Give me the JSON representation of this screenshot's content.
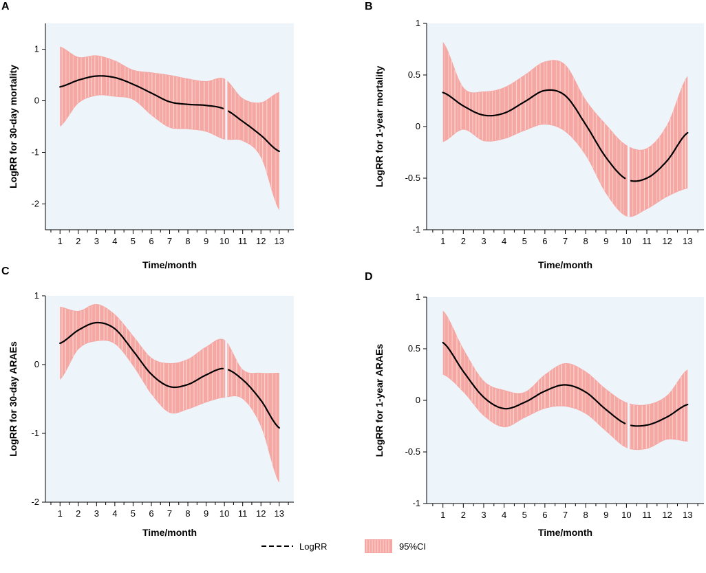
{
  "chart_data": [
    {
      "panel": "A",
      "type": "area",
      "title": "",
      "xlabel": "Time/month",
      "ylabel": "LogRR for 30-day mortality",
      "xlim": [
        0.2,
        13.8
      ],
      "ylim": [
        -2.5,
        1.5
      ],
      "xticks": [
        1,
        2,
        3,
        4,
        5,
        6,
        7,
        8,
        9,
        10,
        11,
        12,
        13
      ],
      "yticks": [
        -2,
        -1,
        0,
        1
      ],
      "ytick_labels": [
        "-2",
        "-1",
        "0",
        "1"
      ],
      "gap_x": 10.1,
      "series": [
        {
          "name": "LogRR",
          "x": [
            1,
            2,
            3,
            4,
            5,
            6,
            7,
            8,
            9,
            10,
            11,
            12,
            13
          ],
          "values": [
            0.27,
            0.4,
            0.48,
            0.45,
            0.32,
            0.15,
            -0.02,
            -0.07,
            -0.09,
            -0.16,
            -0.4,
            -0.67,
            -0.98
          ]
        },
        {
          "name": "95%CI upper",
          "x": [
            1,
            2,
            3,
            4,
            5,
            6,
            7,
            8,
            9,
            10,
            11,
            12,
            13
          ],
          "values": [
            1.05,
            0.85,
            0.88,
            0.78,
            0.6,
            0.55,
            0.5,
            0.43,
            0.38,
            0.43,
            0.05,
            -0.03,
            0.17
          ]
        },
        {
          "name": "95%CI lower",
          "x": [
            1,
            2,
            3,
            4,
            5,
            6,
            7,
            8,
            9,
            10,
            11,
            12,
            13
          ],
          "values": [
            -0.5,
            -0.05,
            0.1,
            0.08,
            0.02,
            -0.28,
            -0.52,
            -0.55,
            -0.6,
            -0.75,
            -0.78,
            -1.1,
            -2.12
          ]
        }
      ]
    },
    {
      "panel": "B",
      "type": "area",
      "title": "",
      "xlabel": "Time/month",
      "ylabel": "LogRR for 1-year mortality",
      "xlim": [
        0.2,
        13.8
      ],
      "ylim": [
        -1,
        1
      ],
      "xticks": [
        1,
        2,
        3,
        4,
        5,
        6,
        7,
        8,
        9,
        10,
        11,
        12,
        13
      ],
      "yticks": [
        -1,
        -0.5,
        0,
        0.5,
        1
      ],
      "ytick_labels": [
        "-1",
        "-0.5",
        "0",
        "0.5",
        "1"
      ],
      "gap_x": 10.1,
      "series": [
        {
          "name": "LogRR",
          "x": [
            1,
            2,
            3,
            4,
            5,
            6,
            7,
            8,
            9,
            10,
            11,
            12,
            13
          ],
          "values": [
            0.33,
            0.2,
            0.11,
            0.13,
            0.24,
            0.35,
            0.3,
            0.02,
            -0.3,
            -0.51,
            -0.5,
            -0.33,
            -0.06
          ]
        },
        {
          "name": "95%CI upper",
          "x": [
            1,
            2,
            3,
            4,
            5,
            6,
            7,
            8,
            9,
            10,
            11,
            12,
            13
          ],
          "values": [
            0.82,
            0.38,
            0.34,
            0.38,
            0.5,
            0.63,
            0.6,
            0.26,
            0.02,
            -0.18,
            -0.21,
            0.02,
            0.49
          ]
        },
        {
          "name": "95%CI lower",
          "x": [
            1,
            2,
            3,
            4,
            5,
            6,
            7,
            8,
            9,
            10,
            11,
            12,
            13
          ],
          "values": [
            -0.15,
            -0.03,
            -0.14,
            -0.12,
            -0.04,
            0.02,
            -0.05,
            -0.28,
            -0.65,
            -0.87,
            -0.8,
            -0.68,
            -0.6
          ]
        }
      ]
    },
    {
      "panel": "C",
      "type": "area",
      "title": "",
      "xlabel": "Time/month",
      "ylabel": "LogRR for 30-day ARAEs",
      "xlim": [
        0.2,
        13.8
      ],
      "ylim": [
        -2,
        1
      ],
      "xticks": [
        1,
        2,
        3,
        4,
        5,
        6,
        7,
        8,
        9,
        10,
        11,
        12,
        13
      ],
      "yticks": [
        -2,
        -1,
        0,
        1
      ],
      "ytick_labels": [
        "-2",
        "-1",
        "0",
        "1"
      ],
      "gap_x": 10.1,
      "series": [
        {
          "name": "LogRR",
          "x": [
            1,
            2,
            3,
            4,
            5,
            6,
            7,
            8,
            9,
            10,
            11,
            12,
            13
          ],
          "values": [
            0.31,
            0.5,
            0.61,
            0.52,
            0.2,
            -0.14,
            -0.32,
            -0.29,
            -0.15,
            -0.06,
            -0.22,
            -0.52,
            -0.92
          ]
        },
        {
          "name": "95%CI upper",
          "x": [
            1,
            2,
            3,
            4,
            5,
            6,
            7,
            8,
            9,
            10,
            11,
            12,
            13
          ],
          "values": [
            0.84,
            0.78,
            0.88,
            0.73,
            0.42,
            0.1,
            0.02,
            0.08,
            0.26,
            0.36,
            -0.07,
            -0.12,
            -0.12
          ]
        },
        {
          "name": "95%CI lower",
          "x": [
            1,
            2,
            3,
            4,
            5,
            6,
            7,
            8,
            9,
            10,
            11,
            12,
            13
          ],
          "values": [
            -0.22,
            0.22,
            0.34,
            0.3,
            -0.02,
            -0.43,
            -0.7,
            -0.65,
            -0.55,
            -0.48,
            -0.5,
            -0.9,
            -1.72
          ]
        }
      ]
    },
    {
      "panel": "D",
      "type": "area",
      "title": "",
      "xlabel": "Time/month",
      "ylabel": "LogRR for 1-year ARAEs",
      "xlim": [
        0.2,
        13.8
      ],
      "ylim": [
        -1,
        1
      ],
      "xticks": [
        1,
        2,
        3,
        4,
        5,
        6,
        7,
        8,
        9,
        10,
        11,
        12,
        13
      ],
      "yticks": [
        -1,
        -0.5,
        0,
        0.5,
        1
      ],
      "ytick_labels": [
        "-1",
        "-0.5",
        "0",
        "0.5",
        "1"
      ],
      "gap_x": 10.1,
      "series": [
        {
          "name": "LogRR",
          "x": [
            1,
            2,
            3,
            4,
            5,
            6,
            7,
            8,
            9,
            10,
            11,
            12,
            13
          ],
          "values": [
            0.56,
            0.28,
            0.03,
            -0.08,
            -0.02,
            0.09,
            0.15,
            0.08,
            -0.09,
            -0.23,
            -0.24,
            -0.16,
            -0.04
          ]
        },
        {
          "name": "95%CI upper",
          "x": [
            1,
            2,
            3,
            4,
            5,
            6,
            7,
            8,
            9,
            10,
            11,
            12,
            13
          ],
          "values": [
            0.87,
            0.5,
            0.19,
            0.1,
            0.08,
            0.25,
            0.36,
            0.28,
            0.11,
            -0.02,
            -0.04,
            0.05,
            0.3
          ]
        },
        {
          "name": "95%CI lower",
          "x": [
            1,
            2,
            3,
            4,
            5,
            6,
            7,
            8,
            9,
            10,
            11,
            12,
            13
          ],
          "values": [
            0.25,
            0.08,
            -0.15,
            -0.26,
            -0.17,
            -0.08,
            -0.06,
            -0.13,
            -0.3,
            -0.46,
            -0.47,
            -0.38,
            -0.4
          ]
        }
      ]
    }
  ],
  "legend": {
    "line_label": "LogRR",
    "band_label": "95%CI"
  },
  "colors": {
    "panel_bg": "#edf4fa",
    "band": "#f5a8a3",
    "stripe": "#fce8e6",
    "line": "#000000",
    "axis": "#000000"
  }
}
